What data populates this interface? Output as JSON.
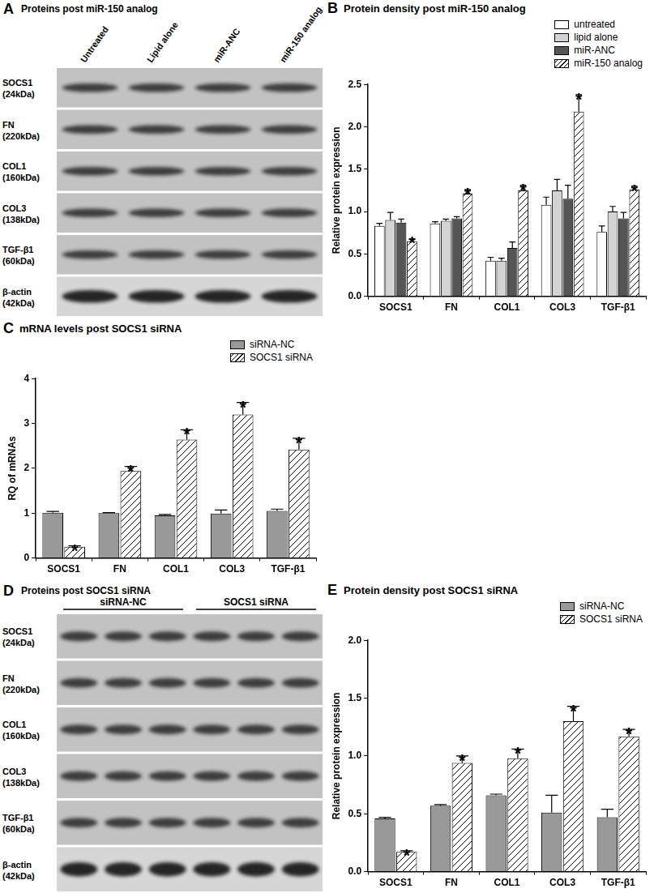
{
  "blots": [
    {
      "panel": "A",
      "title": "Proteins post miR-150 analog",
      "columns": [
        "Untreated",
        "Lipid alone",
        "miR-ANC",
        "miR-150 analog"
      ],
      "rows": [
        {
          "label": "SOCS1",
          "size": "(24kDa)"
        },
        {
          "label": "FN",
          "size": "(220kDa)"
        },
        {
          "label": "COL1",
          "size": "(160kDa)"
        },
        {
          "label": "COL3",
          "size": "(138kDa)"
        },
        {
          "label": "TGF-β1",
          "size": "(60kDa)"
        },
        {
          "label": "β-actin",
          "size": "(42kDa)"
        }
      ]
    },
    {
      "panel": "D",
      "title": "Proteins post SOCS1 siRNA",
      "groups": [
        "siRNA-NC",
        "SOCS1 siRNA"
      ],
      "rows": [
        {
          "label": "SOCS1",
          "size": "(24kDa)"
        },
        {
          "label": "FN",
          "size": "(220kDa)"
        },
        {
          "label": "COL1",
          "size": "(160kDa)"
        },
        {
          "label": "COL3",
          "size": "(138kDa)"
        },
        {
          "label": "TGF-β1",
          "size": "(60kDa)"
        },
        {
          "label": "β-actin",
          "size": "(42kDa)"
        }
      ]
    }
  ],
  "chart_data": [
    {
      "panel": "B",
      "type": "bar",
      "title": "Protein density post miR-150 analog",
      "y_label": "Relative protein expression",
      "categories": [
        "SOCS1",
        "FN",
        "COL1",
        "COL3",
        "TGF-β1"
      ],
      "series": [
        {
          "name": "untreated",
          "color": "#ffffff",
          "values": [
            0.83,
            0.86,
            0.42,
            1.08,
            0.76
          ],
          "errors": [
            0.03,
            0.02,
            0.04,
            0.09,
            0.07
          ],
          "annotations": [
            null,
            null,
            null,
            null,
            null
          ]
        },
        {
          "name": "lipid alone",
          "color": "#d3d3d3",
          "values": [
            0.9,
            0.89,
            0.42,
            1.25,
            1.0
          ],
          "errors": [
            0.09,
            0.02,
            0.03,
            0.13,
            0.06
          ],
          "annotations": [
            null,
            null,
            null,
            null,
            null
          ]
        },
        {
          "name": "miR-ANC",
          "color": "#555555",
          "values": [
            0.87,
            0.92,
            0.57,
            1.15,
            0.92
          ],
          "errors": [
            0.04,
            0.02,
            0.07,
            0.16,
            0.07
          ],
          "annotations": [
            null,
            null,
            null,
            null,
            null
          ]
        },
        {
          "name": "miR-150 analog",
          "color": "#ffffff",
          "values": [
            0.65,
            1.21,
            1.25,
            2.18,
            1.26
          ],
          "errors": [
            0.03,
            0.05,
            0.06,
            0.2,
            0.04
          ],
          "annotations": [
            "*",
            "*",
            "*",
            "*",
            "*"
          ]
        }
      ],
      "ylim": [
        0,
        2.5
      ],
      "yticks": [
        {
          "value": 0,
          "label": "0.0"
        },
        0.5,
        {
          "value": 1,
          "label": "1.0"
        },
        1.5,
        {
          "value": 2,
          "label": "2.0"
        },
        2.5
      ],
      "grid": false,
      "legend": "upper right"
    },
    {
      "panel": "C",
      "type": "bar",
      "title": "mRNA levels post SOCS1 siRNA",
      "y_label": "RQ of mRNAs",
      "categories": [
        "SOCS1",
        "FN",
        "COL1",
        "COL3",
        "TGF-β1"
      ],
      "series": [
        {
          "name": "siRNA-NC",
          "color": "#999999",
          "values": [
            1.01,
            1.0,
            0.95,
            0.99,
            1.05
          ],
          "errors": [
            0.03,
            0.01,
            0.02,
            0.08,
            0.04
          ],
          "annotations": [
            null,
            null,
            null,
            null,
            null
          ]
        },
        {
          "name": "SOCS1 siRNA",
          "color": "#ffffff",
          "values": [
            0.25,
            1.94,
            2.64,
            3.2,
            2.42
          ],
          "errors": [
            0.02,
            0.1,
            0.22,
            0.27,
            0.25
          ],
          "annotations": [
            "*",
            "*",
            "*",
            "*",
            "*"
          ]
        }
      ],
      "ylim": [
        0,
        4
      ],
      "yticks": [
        0,
        1,
        2,
        3,
        4
      ],
      "grid": false,
      "legend": "upper right"
    },
    {
      "panel": "E",
      "type": "bar",
      "title": "Protein density post SOCS1 siRNA",
      "y_label": "Relative protein expression",
      "categories": [
        "SOCS1",
        "FN",
        "COL1",
        "COL3",
        "TGF-β1"
      ],
      "series": [
        {
          "name": "siRNA-NC",
          "color": "#999999",
          "values": [
            0.46,
            0.57,
            0.66,
            0.51,
            0.47
          ],
          "errors": [
            0.01,
            0.01,
            0.01,
            0.15,
            0.07
          ],
          "annotations": [
            null,
            null,
            null,
            null,
            null
          ]
        },
        {
          "name": "SOCS1 siRNA",
          "color": "#ffffff",
          "values": [
            0.17,
            0.94,
            0.98,
            1.3,
            1.17
          ],
          "errors": [
            0.01,
            0.06,
            0.08,
            0.13,
            0.06
          ],
          "annotations": [
            "*",
            "*",
            "*",
            "*",
            "*"
          ]
        }
      ],
      "ylim": [
        0,
        2
      ],
      "yticks": [
        {
          "value": 0,
          "label": "0.0"
        },
        0.5,
        {
          "value": 1,
          "label": "1.0"
        },
        1.5,
        {
          "value": 2,
          "label": "2.0"
        }
      ],
      "grid": false,
      "legend": "upper right"
    }
  ]
}
